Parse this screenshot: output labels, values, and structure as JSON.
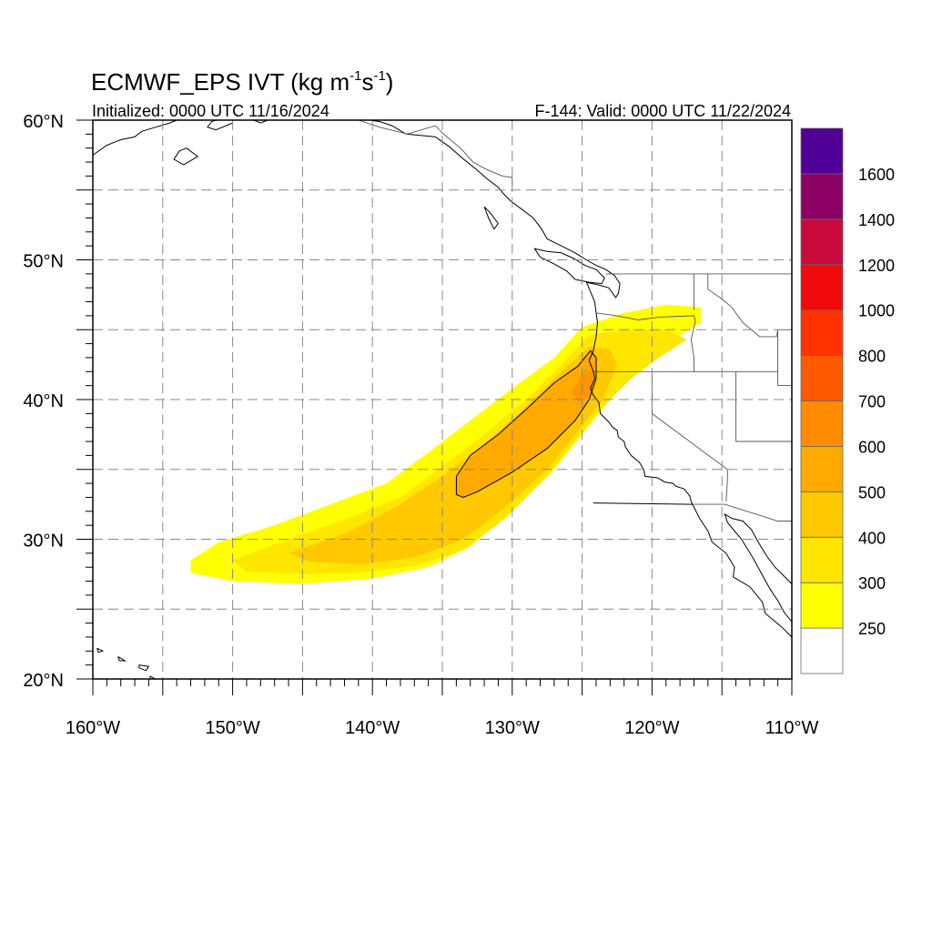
{
  "title": {
    "main": "ECMWF_EPS IVT (kg m",
    "sup1": "-1",
    "mid": "s",
    "sup2": "-1",
    "close": ")"
  },
  "subtitle_left": "Initialized: 0000 UTC 11/16/2024",
  "subtitle_right": "F-144: Valid: 0000 UTC 11/22/2024",
  "lon_range": [
    -160,
    -110
  ],
  "lat_range": [
    20,
    60
  ],
  "lon_ticks": [
    {
      "value": -160,
      "label": "160°W"
    },
    {
      "value": -150,
      "label": "150°W"
    },
    {
      "value": -140,
      "label": "140°W"
    },
    {
      "value": -130,
      "label": "130°W"
    },
    {
      "value": -120,
      "label": "120°W"
    },
    {
      "value": -110,
      "label": "110°W"
    }
  ],
  "lat_ticks": [
    {
      "value": 20,
      "label": "20°N"
    },
    {
      "value": 30,
      "label": "30°N"
    },
    {
      "value": 40,
      "label": "40°N"
    },
    {
      "value": 50,
      "label": "50°N"
    },
    {
      "value": 60,
      "label": "60°N"
    }
  ],
  "colorbar": {
    "bins": [
      {
        "color": "#ffffff"
      },
      {
        "color": "#ffff00"
      },
      {
        "color": "#ffe600"
      },
      {
        "color": "#ffc800"
      },
      {
        "color": "#ffaa00"
      },
      {
        "color": "#ff8c00"
      },
      {
        "color": "#ff5a00"
      },
      {
        "color": "#ff3200"
      },
      {
        "color": "#f00a0a"
      },
      {
        "color": "#c80a3c"
      },
      {
        "color": "#8c0064"
      },
      {
        "color": "#500096"
      }
    ],
    "labels": [
      "250",
      "300",
      "400",
      "500",
      "600",
      "700",
      "800",
      "1000",
      "1200",
      "1400",
      "1600"
    ]
  },
  "ivt_field": [
    {
      "level": 250,
      "color": "#ffff00",
      "polygon": [
        [
          -153,
          28.5
        ],
        [
          -151,
          29.8
        ],
        [
          -147,
          31
        ],
        [
          -143,
          32.5
        ],
        [
          -139,
          34
        ],
        [
          -136,
          36.2
        ],
        [
          -133,
          38.5
        ],
        [
          -130,
          40.8
        ],
        [
          -127,
          43
        ],
        [
          -125,
          45.2
        ],
        [
          -122,
          46.2
        ],
        [
          -119,
          46.8
        ],
        [
          -116.5,
          46.6
        ],
        [
          -116.5,
          45.5
        ],
        [
          -119,
          44
        ],
        [
          -121,
          42.2
        ],
        [
          -123,
          40
        ],
        [
          -125,
          37.5
        ],
        [
          -127,
          35
        ],
        [
          -130,
          32
        ],
        [
          -133,
          29.5
        ],
        [
          -136,
          28
        ],
        [
          -140,
          27.2
        ],
        [
          -145,
          26.8
        ],
        [
          -150,
          27
        ],
        [
          -153,
          27.6
        ]
      ]
    },
    {
      "level": 300,
      "color": "#ffe600",
      "polygon": [
        [
          -150,
          28.5
        ],
        [
          -146,
          30
        ],
        [
          -142,
          31.4
        ],
        [
          -138,
          33
        ],
        [
          -135,
          35.2
        ],
        [
          -132,
          37.5
        ],
        [
          -129,
          40
        ],
        [
          -126.5,
          42.5
        ],
        [
          -124.5,
          44.6
        ],
        [
          -122,
          45
        ],
        [
          -119,
          45
        ],
        [
          -117.5,
          44.3
        ],
        [
          -119.5,
          43
        ],
        [
          -121.5,
          41.5
        ],
        [
          -123.5,
          39.5
        ],
        [
          -125.5,
          37
        ],
        [
          -127.5,
          34.5
        ],
        [
          -130.5,
          31.5
        ],
        [
          -133.5,
          29.2
        ],
        [
          -137,
          28.1
        ],
        [
          -141,
          27.6
        ],
        [
          -145,
          27.5
        ],
        [
          -149,
          27.7
        ]
      ]
    },
    {
      "level": 400,
      "color": "#ffc800",
      "polygon": [
        [
          -146,
          29
        ],
        [
          -142,
          30.4
        ],
        [
          -138.5,
          32.2
        ],
        [
          -135,
          34.5
        ],
        [
          -132,
          36.8
        ],
        [
          -129,
          39.5
        ],
        [
          -126.5,
          42
        ],
        [
          -124.5,
          43.8
        ],
        [
          -123,
          43.6
        ],
        [
          -122.5,
          42.5
        ],
        [
          -123.5,
          40
        ],
        [
          -125.5,
          37.5
        ],
        [
          -127.5,
          35
        ],
        [
          -130.5,
          32.3
        ],
        [
          -133.5,
          30
        ],
        [
          -137,
          28.7
        ],
        [
          -141,
          28.2
        ],
        [
          -144.5,
          28.4
        ]
      ]
    },
    {
      "level": 500,
      "color": "#ffaa00",
      "polygon": [
        [
          -134,
          33.2
        ],
        [
          -134,
          34.5
        ],
        [
          -133,
          36
        ],
        [
          -131,
          37.5
        ],
        [
          -129,
          39.3
        ],
        [
          -127,
          41.2
        ],
        [
          -125.3,
          42.4
        ],
        [
          -124.4,
          43.5
        ],
        [
          -124,
          43
        ],
        [
          -124,
          41.5
        ],
        [
          -124.5,
          40
        ],
        [
          -125.5,
          38.5
        ],
        [
          -127.5,
          36.5
        ],
        [
          -130,
          34.8
        ],
        [
          -132.5,
          33.4
        ],
        [
          -133.5,
          33
        ]
      ]
    },
    {
      "level": 600,
      "color": "#ff9600",
      "polygon": [
        [
          -125.8,
          40.5
        ],
        [
          -124.8,
          42.2
        ],
        [
          -124.2,
          42
        ],
        [
          -124.4,
          40.3
        ],
        [
          -125.2,
          39.8
        ]
      ]
    }
  ],
  "ivt_contour_500": [
    [
      -134,
      33.2
    ],
    [
      -134,
      34.5
    ],
    [
      -133,
      36
    ],
    [
      -131,
      37.5
    ],
    [
      -129,
      39.3
    ],
    [
      -127,
      41.2
    ],
    [
      -125.3,
      42.4
    ],
    [
      -124.4,
      43.5
    ],
    [
      -124,
      43
    ],
    [
      -124,
      41.5
    ],
    [
      -124.5,
      40
    ],
    [
      -125.5,
      38.5
    ],
    [
      -127.5,
      36.5
    ],
    [
      -130,
      34.8
    ],
    [
      -132.5,
      33.4
    ],
    [
      -133.5,
      33
    ],
    [
      -134,
      33.2
    ]
  ],
  "coastlines": [
    [
      [
        -124.2,
        32.6
      ],
      [
        -117.1,
        32.5
      ],
      [
        -117.2,
        32.7
      ],
      [
        -117.3,
        33.1
      ],
      [
        -117.7,
        33.6
      ],
      [
        -118.3,
        33.8
      ],
      [
        -118.5,
        34.0
      ],
      [
        -119.1,
        34.1
      ],
      [
        -119.6,
        34.4
      ],
      [
        -120.5,
        34.5
      ],
      [
        -120.6,
        35.0
      ],
      [
        -120.9,
        35.5
      ],
      [
        -121.5,
        36.0
      ],
      [
        -121.9,
        36.6
      ],
      [
        -122.0,
        37.0
      ],
      [
        -122.4,
        37.3
      ],
      [
        -122.5,
        37.8
      ],
      [
        -122.8,
        38.0
      ],
      [
        -123.1,
        38.4
      ],
      [
        -123.7,
        39.0
      ],
      [
        -123.8,
        39.8
      ],
      [
        -124.2,
        40.3
      ],
      [
        -124.4,
        40.8
      ],
      [
        -124.1,
        41.5
      ],
      [
        -124.2,
        42.0
      ],
      [
        -124.5,
        42.8
      ],
      [
        -124.2,
        43.5
      ],
      [
        -124.0,
        44.5
      ],
      [
        -123.9,
        45.5
      ],
      [
        -124.0,
        46.2
      ],
      [
        -124.1,
        47.0
      ],
      [
        -124.6,
        48.2
      ],
      [
        -124.7,
        48.4
      ]
    ],
    [
      [
        -117.1,
        32.5
      ],
      [
        -116.6,
        31.5
      ],
      [
        -116.0,
        30.6
      ],
      [
        -115.7,
        29.8
      ],
      [
        -114.7,
        29.0
      ],
      [
        -114.1,
        28.0
      ],
      [
        -114.2,
        27.3
      ],
      [
        -113.0,
        26.6
      ],
      [
        -112.1,
        25.5
      ],
      [
        -111.9,
        24.7
      ],
      [
        -110.7,
        23.7
      ],
      [
        -109.9,
        22.9
      ],
      [
        -109.5,
        23.3
      ],
      [
        -110.0,
        24.1
      ],
      [
        -110.5,
        24.7
      ],
      [
        -111.0,
        25.6
      ],
      [
        -111.6,
        26.5
      ],
      [
        -112.2,
        27.6
      ],
      [
        -112.8,
        28.7
      ],
      [
        -113.6,
        30.0
      ],
      [
        -114.6,
        31.2
      ],
      [
        -114.8,
        31.8
      ],
      [
        -114.3,
        31.5
      ],
      [
        -113.5,
        31.3
      ],
      [
        -112.9,
        30.7
      ],
      [
        -112.4,
        29.8
      ],
      [
        -111.8,
        28.8
      ],
      [
        -111.2,
        28.0
      ],
      [
        -110.6,
        27.4
      ],
      [
        -110.0,
        26.8
      ],
      [
        -109.4,
        25.9
      ],
      [
        -109.1,
        25.4
      ]
    ],
    [
      [
        -124.7,
        48.4
      ],
      [
        -123.8,
        48.2
      ],
      [
        -123.1,
        48.0
      ],
      [
        -122.6,
        47.3
      ],
      [
        -122.4,
        47.6
      ],
      [
        -122.3,
        48.3
      ],
      [
        -122.7,
        48.9
      ],
      [
        -123.3,
        49.3
      ],
      [
        -124.0,
        49.6
      ],
      [
        -124.7,
        50.0
      ],
      [
        -125.5,
        50.5
      ],
      [
        -126.5,
        51.0
      ],
      [
        -127.5,
        51.5
      ],
      [
        -127.9,
        52.2
      ],
      [
        -128.5,
        53.0
      ],
      [
        -129.3,
        53.6
      ],
      [
        -130.1,
        54.2
      ],
      [
        -130.6,
        54.7
      ],
      [
        -131.0,
        55.2
      ],
      [
        -131.8,
        55.8
      ],
      [
        -132.6,
        56.5
      ],
      [
        -133.6,
        57.3
      ],
      [
        -134.5,
        58.1
      ],
      [
        -135.5,
        58.8
      ],
      [
        -136.5,
        58.9
      ],
      [
        -137.6,
        59.0
      ],
      [
        -138.6,
        59.6
      ],
      [
        -139.5,
        59.9
      ],
      [
        -140.2,
        60.0
      ]
    ],
    [
      [
        -125.5,
        48.6
      ],
      [
        -124.5,
        48.4
      ],
      [
        -123.6,
        48.3
      ],
      [
        -123.4,
        48.7
      ],
      [
        -124.0,
        49.3
      ],
      [
        -124.8,
        49.6
      ],
      [
        -125.6,
        50.1
      ],
      [
        -126.5,
        50.5
      ],
      [
        -127.5,
        50.6
      ],
      [
        -128.4,
        50.8
      ],
      [
        -128.0,
        50.2
      ],
      [
        -127.0,
        49.7
      ],
      [
        -126.1,
        49.2
      ],
      [
        -125.5,
        48.6
      ]
    ],
    [
      [
        -132.0,
        53.8
      ],
      [
        -131.7,
        53.0
      ],
      [
        -131.3,
        52.2
      ],
      [
        -131.0,
        52.6
      ],
      [
        -131.6,
        53.4
      ],
      [
        -132.0,
        53.8
      ]
    ],
    [
      [
        -160,
        57.5
      ],
      [
        -159,
        58.2
      ],
      [
        -158,
        58.6
      ],
      [
        -157,
        58.8
      ],
      [
        -156.5,
        59.2
      ],
      [
        -155.5,
        59.5
      ],
      [
        -154.5,
        59.8
      ],
      [
        -154.0,
        60.0
      ]
    ],
    [
      [
        -150.0,
        59.8
      ],
      [
        -151.2,
        59.3
      ],
      [
        -151.8,
        59.5
      ],
      [
        -151.5,
        59.9
      ],
      [
        -151.2,
        60.0
      ]
    ],
    [
      [
        -148.5,
        60.0
      ],
      [
        -148.0,
        59.8
      ],
      [
        -147.5,
        60.0
      ]
    ],
    [
      [
        -153.3,
        58.0
      ],
      [
        -152.5,
        57.4
      ],
      [
        -153.5,
        56.8
      ],
      [
        -154.2,
        57.2
      ],
      [
        -153.8,
        57.8
      ],
      [
        -153.3,
        58.0
      ]
    ],
    [
      [
        -155.9,
        20.2
      ],
      [
        -155.0,
        19.7
      ],
      [
        -155.6,
        19.1
      ],
      [
        -155.9,
        19.6
      ],
      [
        -155.9,
        20.2
      ]
    ],
    [
      [
        -156.7,
        21.0
      ],
      [
        -156.0,
        20.9
      ],
      [
        -156.2,
        20.6
      ],
      [
        -156.7,
        20.8
      ],
      [
        -156.7,
        21.0
      ]
    ],
    [
      [
        -158.2,
        21.6
      ],
      [
        -157.7,
        21.3
      ],
      [
        -158.1,
        21.3
      ],
      [
        -158.2,
        21.6
      ]
    ],
    [
      [
        -159.7,
        22.2
      ],
      [
        -159.3,
        22.0
      ],
      [
        -159.6,
        21.9
      ],
      [
        -159.7,
        22.2
      ]
    ]
  ],
  "boundaries": [
    [
      [
        -123.3,
        49.0
      ],
      [
        -110,
        49.0
      ]
    ],
    [
      [
        -117.1,
        32.5
      ],
      [
        -114.8,
        32.5
      ],
      [
        -111.0,
        31.3
      ],
      [
        -110,
        31.3
      ]
    ],
    [
      [
        -124.2,
        42.0
      ],
      [
        -120.0,
        42.0
      ],
      [
        -117.0,
        42.0
      ],
      [
        -111.0,
        42.0
      ]
    ],
    [
      [
        -120.0,
        42.0
      ],
      [
        -120.0,
        39.0
      ],
      [
        -114.6,
        35.0
      ],
      [
        -114.6,
        34.3
      ],
      [
        -114.7,
        32.7
      ]
    ],
    [
      [
        -124.0,
        46.2
      ],
      [
        -122.5,
        46.0
      ],
      [
        -121.0,
        45.7
      ],
      [
        -119.5,
        45.9
      ],
      [
        -117.0,
        46.0
      ],
      [
        -116.9,
        45.6
      ],
      [
        -117.2,
        44.3
      ],
      [
        -117.0,
        43.0
      ],
      [
        -117.0,
        42.0
      ]
    ],
    [
      [
        -117.0,
        49.0
      ],
      [
        -117.0,
        46.4
      ]
    ],
    [
      [
        -116.0,
        49.0
      ],
      [
        -116.0,
        47.9
      ],
      [
        -115.0,
        47.2
      ],
      [
        -114.3,
        46.6
      ],
      [
        -113.5,
        45.5
      ],
      [
        -112.3,
        44.5
      ],
      [
        -111.1,
        44.5
      ],
      [
        -111.0,
        45.0
      ]
    ],
    [
      [
        -111.0,
        45.0
      ],
      [
        -110,
        45.0
      ]
    ],
    [
      [
        -111.0,
        45.0
      ],
      [
        -111.0,
        41.0
      ],
      [
        -110,
        41.0
      ]
    ],
    [
      [
        -114.0,
        42.0
      ],
      [
        -114.0,
        37.0
      ],
      [
        -110,
        37.0
      ]
    ],
    [
      [
        -141.0,
        60.0
      ],
      [
        -139.5,
        59.5
      ],
      [
        -137.5,
        59.0
      ],
      [
        -136.5,
        59.3
      ],
      [
        -135.5,
        59.6
      ],
      [
        -134.8,
        58.9
      ],
      [
        -133.7,
        58.0
      ],
      [
        -132.8,
        57.0
      ],
      [
        -131.9,
        56.5
      ],
      [
        -130.7,
        56.0
      ],
      [
        -130.0,
        55.9
      ],
      [
        -130.0,
        55.3
      ]
    ]
  ]
}
